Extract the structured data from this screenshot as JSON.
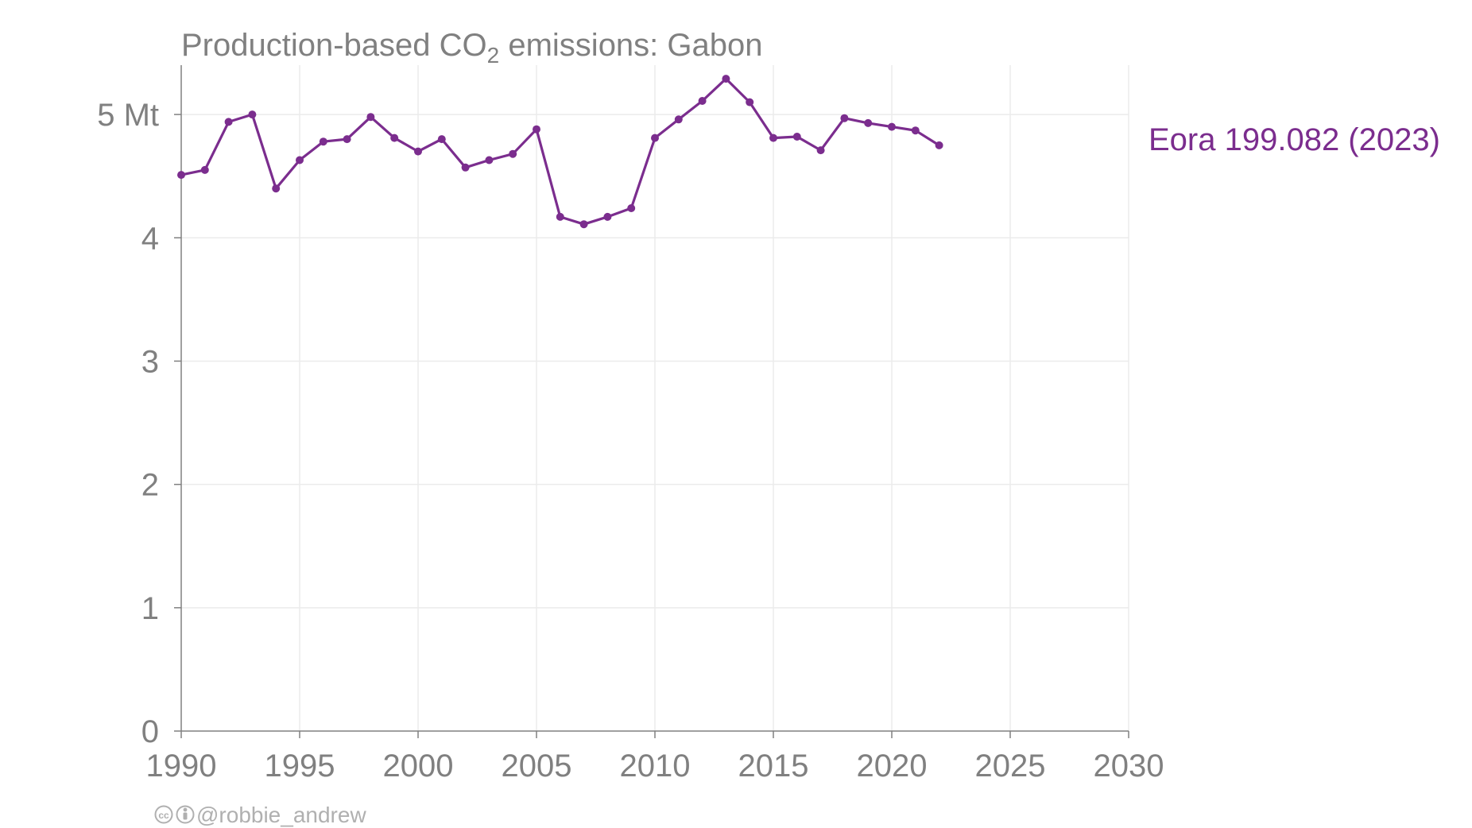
{
  "chart_data": {
    "type": "line",
    "title_prefix": "Production-based CO",
    "title_subscript": "2",
    "title_suffix": " emissions: Gabon",
    "y_unit_suffix": " Mt",
    "xlim": [
      1990,
      2030
    ],
    "ylim": [
      0,
      5.4
    ],
    "x_ticks": [
      1990,
      1995,
      2000,
      2005,
      2010,
      2015,
      2020,
      2025,
      2030
    ],
    "y_ticks": [
      0,
      1,
      2,
      3,
      4,
      5
    ],
    "grid": true,
    "series": [
      {
        "name": "Eora 199.082 (2023)",
        "color": "#7b2d8e",
        "x": [
          1990,
          1991,
          1992,
          1993,
          1994,
          1995,
          1996,
          1997,
          1998,
          1999,
          2000,
          2001,
          2002,
          2003,
          2004,
          2005,
          2006,
          2007,
          2008,
          2009,
          2010,
          2011,
          2012,
          2013,
          2014,
          2015,
          2016,
          2017,
          2018,
          2019,
          2020,
          2021,
          2022
        ],
        "values": [
          4.51,
          4.55,
          4.94,
          5.0,
          4.4,
          4.63,
          4.78,
          4.8,
          4.98,
          4.81,
          4.7,
          4.8,
          4.57,
          4.63,
          4.68,
          4.88,
          4.17,
          4.11,
          4.17,
          4.24,
          4.81,
          4.96,
          5.11,
          5.29,
          5.1,
          4.81,
          4.82,
          4.71,
          4.97,
          4.93,
          4.9,
          4.87,
          4.75
        ]
      }
    ]
  },
  "credit": {
    "icons": [
      "cc-icon",
      "attribution-icon"
    ],
    "text": "@robbie_andrew"
  }
}
